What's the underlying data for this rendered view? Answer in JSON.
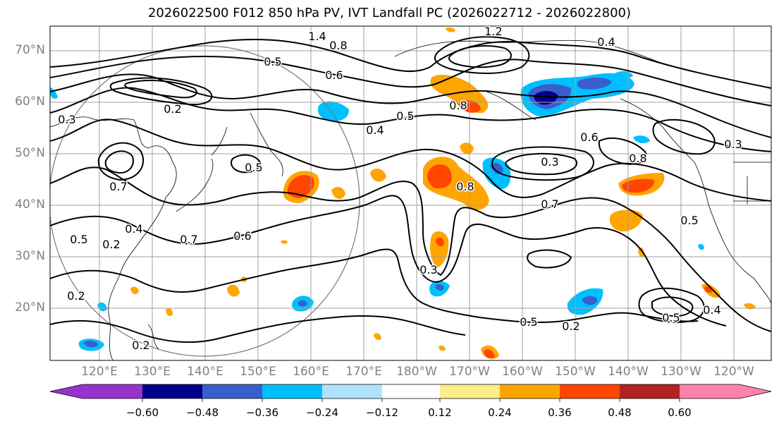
{
  "title": "2026022500 F012 850 hPa PV, IVT Landfall PC (2026022712 - 2026022800)",
  "lat_labels": [
    "70°N",
    "60°N",
    "50°N",
    "40°N",
    "30°N",
    "20°N"
  ],
  "lon_labels": [
    "120°E",
    "130°E",
    "140°E",
    "150°E",
    "160°E",
    "170°E",
    "180°W",
    "170°W",
    "160°W",
    "150°W",
    "140°W",
    "130°W",
    "120°W"
  ],
  "colorbar": {
    "ticks": [
      "−0.60",
      "−0.48",
      "−0.36",
      "−0.24",
      "−0.12",
      "0.12",
      "0.24",
      "0.36",
      "0.48",
      "0.60"
    ],
    "colors": [
      "#9932cc",
      "#00008b",
      "#3a5fcd",
      "#00bfff",
      "#b0e2ff",
      "#ffffff",
      "#ffec8b",
      "#ffa500",
      "#ff4500",
      "#b22222",
      "#ff82ab"
    ]
  },
  "contour_labels": [
    "1.4",
    "1.2",
    "0.8",
    "0.4",
    "0.5",
    "0.6",
    "0.3",
    "0.2",
    "0.4",
    "0.5",
    "0.6",
    "0.8",
    "0.3",
    "0.7",
    "0.5",
    "0.2",
    "0.4",
    "0.7",
    "0.6",
    "0.3",
    "0.5",
    "0.5",
    "0.2",
    "0.2",
    "0.5",
    "0.4",
    "0.8",
    "0.3",
    "0.7",
    "0.8",
    "0.5",
    "0.2"
  ],
  "colors": {
    "axis_label": "#808080",
    "grid": "#a0a0a0",
    "contour": "#000000"
  }
}
